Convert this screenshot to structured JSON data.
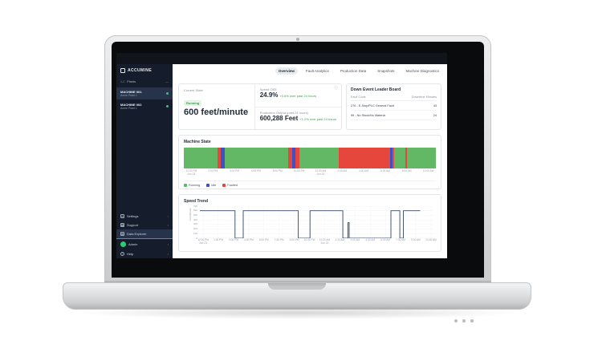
{
  "brand": {
    "logo_text": "ACCUMINE",
    "accent_green": "#2ecc71",
    "sidebar_bg": "#151d2c"
  },
  "sidebar": {
    "group": {
      "count": "1-2",
      "label": "Plants",
      "collapse": "—"
    },
    "machines": [
      {
        "name": "MACHINE 001",
        "sub": "Acme Plant 1",
        "active": true
      },
      {
        "name": "MACHINE 002",
        "sub": "Acme Plant 1",
        "active": false
      }
    ],
    "bottom_items": [
      {
        "label": "Settings",
        "icon": "gear-icon",
        "glyph": "⚙",
        "chevron": "›",
        "highlight": false
      },
      {
        "label": "Support",
        "icon": "support-icon",
        "glyph": "☎",
        "chevron": "›",
        "highlight": false
      },
      {
        "label": "Data Explorer",
        "icon": "data-icon",
        "glyph": "▦",
        "chevron": "",
        "highlight": true
      },
      {
        "label": "Admin",
        "icon": "avatar",
        "glyph": "",
        "chevron": "›",
        "highlight": false
      },
      {
        "label": "Help",
        "icon": "help-icon",
        "glyph": "?",
        "chevron": "›",
        "highlight": false
      }
    ]
  },
  "tabs": [
    {
      "label": "Overview",
      "active": true
    },
    {
      "label": "Fault Analytics",
      "active": false
    },
    {
      "label": "Production Data",
      "active": false
    },
    {
      "label": "Snapshots",
      "active": false
    },
    {
      "label": "Machine Diagnostics",
      "active": false
    }
  ],
  "metrics": {
    "current_state": {
      "label": "Current State",
      "badge": "Running",
      "value": "600 feet/minute"
    },
    "speed_oee": {
      "label": "Speed OEE",
      "value": "24.9%",
      "delta": "+0.6% over past 24 hours"
    },
    "production": {
      "label": "Production Output (past 24 hours)",
      "value": "600,288 Feet",
      "delta": "+1.2% over past 24 hours"
    },
    "info_glyph": "ⓘ"
  },
  "down_events": {
    "title": "Down Event Leader Board",
    "columns": [
      "Fault Code",
      "Downtime Minutes"
    ],
    "rows": [
      {
        "code": "276 - E-Stop/PLC General Fault",
        "minutes": "43"
      },
      {
        "code": "99 - No Stock/No Material",
        "minutes": "24"
      }
    ]
  },
  "chart_data": [
    {
      "type": "heatmap",
      "variant": "state-timeline",
      "title": "Machine State",
      "legend": [
        {
          "label": "Running",
          "color": "#63b866"
        },
        {
          "label": "Idle",
          "color": "#3c50c8"
        },
        {
          "label": "Faulted",
          "color": "#e5473d"
        }
      ],
      "segments": [
        {
          "state": "Running",
          "start": 0,
          "end": 13.5
        },
        {
          "state": "Faulted",
          "start": 13.5,
          "end": 14.8
        },
        {
          "state": "Idle",
          "start": 14.8,
          "end": 16.3
        },
        {
          "state": "Running",
          "start": 16.3,
          "end": 41.5
        },
        {
          "state": "Faulted",
          "start": 41.5,
          "end": 43.0
        },
        {
          "state": "Idle",
          "start": 43.0,
          "end": 44.4
        },
        {
          "state": "Faulted",
          "start": 44.4,
          "end": 46.0
        },
        {
          "state": "Running",
          "start": 46.0,
          "end": 61.5
        },
        {
          "state": "Faulted",
          "start": 61.5,
          "end": 82.0
        },
        {
          "state": "Idle",
          "start": 82.0,
          "end": 82.9
        },
        {
          "state": "Faulted",
          "start": 82.9,
          "end": 83.5
        },
        {
          "state": "Running",
          "start": 83.5,
          "end": 88.0
        },
        {
          "state": "Faulted",
          "start": 88.0,
          "end": 88.5
        },
        {
          "state": "Running",
          "start": 88.5,
          "end": 100
        }
      ],
      "ticks": [
        {
          "label": "12:00 PM",
          "sub": "Jun 23"
        },
        {
          "label": "2:00 PM",
          "sub": ""
        },
        {
          "label": "4:00 PM",
          "sub": ""
        },
        {
          "label": "6:00 PM",
          "sub": ""
        },
        {
          "label": "8:00 PM",
          "sub": ""
        },
        {
          "label": "10:00 PM",
          "sub": ""
        },
        {
          "label": "12:00 AM",
          "sub": "Jun 24"
        },
        {
          "label": "2:00 AM",
          "sub": ""
        },
        {
          "label": "4:00 AM",
          "sub": ""
        },
        {
          "label": "6:00 AM",
          "sub": ""
        },
        {
          "label": "8:00 AM",
          "sub": ""
        },
        {
          "label": "10:00 AM",
          "sub": ""
        }
      ]
    },
    {
      "type": "line",
      "variant": "step",
      "title": "Speed Trend",
      "ylabel": "Feet/Minute",
      "ylim": [
        0,
        700
      ],
      "yticks": [
        700,
        600,
        500,
        400,
        300,
        200,
        100,
        0
      ],
      "line_color": "#344563",
      "grid": true,
      "steps": [
        [
          0,
          600
        ],
        [
          15,
          600
        ],
        [
          15,
          0
        ],
        [
          18.5,
          0
        ],
        [
          18.5,
          600
        ],
        [
          42,
          600
        ],
        [
          42,
          0
        ],
        [
          47,
          0
        ],
        [
          47,
          600
        ],
        [
          61,
          600
        ],
        [
          61,
          0
        ],
        [
          63.2,
          0
        ],
        [
          63.2,
          340
        ],
        [
          63.7,
          340
        ],
        [
          63.7,
          0
        ],
        [
          81.5,
          0
        ],
        [
          81.5,
          600
        ],
        [
          85.3,
          600
        ],
        [
          85.3,
          0
        ],
        [
          86.8,
          0
        ],
        [
          86.8,
          600
        ],
        [
          94,
          600
        ]
      ],
      "x_ticks": [
        {
          "label": "12:00 PM",
          "sub": "Jun 23"
        },
        {
          "label": "1:30 PM",
          "sub": ""
        },
        {
          "label": "3:00 PM",
          "sub": ""
        },
        {
          "label": "4:30 PM",
          "sub": ""
        },
        {
          "label": "6:00 PM",
          "sub": ""
        },
        {
          "label": "7:30 PM",
          "sub": ""
        },
        {
          "label": "9:00 PM",
          "sub": ""
        },
        {
          "label": "10:30 PM",
          "sub": ""
        },
        {
          "label": "12:00 AM",
          "sub": "Jun 24"
        },
        {
          "label": "1:30 AM",
          "sub": ""
        },
        {
          "label": "3:00 AM",
          "sub": ""
        },
        {
          "label": "4:30 AM",
          "sub": ""
        },
        {
          "label": "6:00 AM",
          "sub": ""
        },
        {
          "label": "7:30 AM",
          "sub": ""
        },
        {
          "label": "9:00 AM",
          "sub": ""
        },
        {
          "label": "10:30 AM",
          "sub": ""
        }
      ]
    }
  ]
}
